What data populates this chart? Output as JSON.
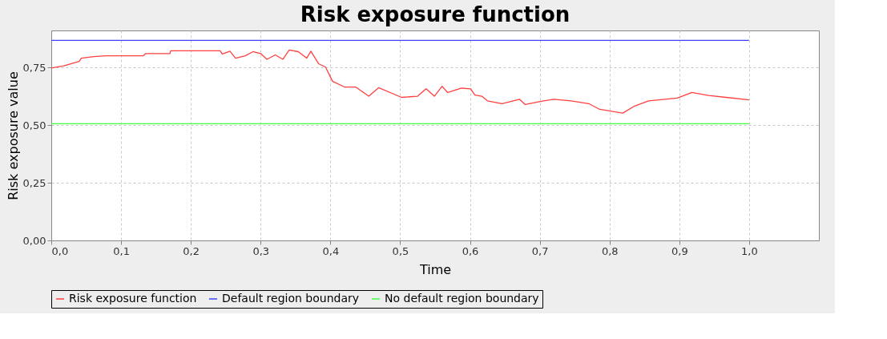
{
  "chart_data": {
    "type": "line",
    "title": "Risk exposure function",
    "xlabel": "Time",
    "ylabel": "Risk exposure value",
    "xlim": [
      0,
      1.1
    ],
    "ylim": [
      0,
      0.91
    ],
    "xticks": [
      {
        "value": 0,
        "label": "0,0"
      },
      {
        "value": 0.1,
        "label": "0,1"
      },
      {
        "value": 0.2,
        "label": "0,2"
      },
      {
        "value": 0.3,
        "label": "0,3"
      },
      {
        "value": 0.4,
        "label": "0,4"
      },
      {
        "value": 0.5,
        "label": "0,5"
      },
      {
        "value": 0.6,
        "label": "0,6"
      },
      {
        "value": 0.7,
        "label": "0,7"
      },
      {
        "value": 0.8,
        "label": "0,8"
      },
      {
        "value": 0.9,
        "label": "0,9"
      },
      {
        "value": 1.0,
        "label": "1,0"
      }
    ],
    "yticks": [
      {
        "value": 0,
        "label": "0,00"
      },
      {
        "value": 0.25,
        "label": "0,25"
      },
      {
        "value": 0.5,
        "label": "0,50"
      },
      {
        "value": 0.75,
        "label": "0,75"
      }
    ],
    "grid": true,
    "legend": "bottom",
    "line_style": "solid",
    "series": [
      {
        "name": "Risk exposure function",
        "color": "#ff4040",
        "x": [
          0,
          0.018,
          0.04,
          0.043,
          0.061,
          0.079,
          0.097,
          0.132,
          0.135,
          0.17,
          0.171,
          0.242,
          0.245,
          0.256,
          0.264,
          0.278,
          0.289,
          0.3,
          0.309,
          0.321,
          0.332,
          0.341,
          0.354,
          0.366,
          0.372,
          0.383,
          0.393,
          0.403,
          0.42,
          0.436,
          0.455,
          0.469,
          0.502,
          0.525,
          0.537,
          0.549,
          0.56,
          0.568,
          0.588,
          0.601,
          0.607,
          0.617,
          0.625,
          0.646,
          0.671,
          0.679,
          0.704,
          0.72,
          0.745,
          0.77,
          0.786,
          0.819,
          0.835,
          0.856,
          0.897,
          0.918,
          0.942,
          0.967,
          1.0
        ],
        "values": [
          0.747,
          0.757,
          0.776,
          0.79,
          0.797,
          0.8,
          0.8,
          0.8,
          0.81,
          0.81,
          0.822,
          0.822,
          0.808,
          0.82,
          0.79,
          0.8,
          0.818,
          0.81,
          0.785,
          0.804,
          0.785,
          0.825,
          0.818,
          0.79,
          0.82,
          0.766,
          0.751,
          0.69,
          0.665,
          0.665,
          0.625,
          0.662,
          0.62,
          0.625,
          0.657,
          0.625,
          0.668,
          0.641,
          0.66,
          0.657,
          0.63,
          0.625,
          0.605,
          0.593,
          0.612,
          0.589,
          0.604,
          0.612,
          0.605,
          0.593,
          0.568,
          0.552,
          0.581,
          0.605,
          0.617,
          0.641,
          0.628,
          0.62,
          0.609
        ]
      },
      {
        "name": "Default region boundary",
        "color": "#4040ff",
        "x": [
          0,
          1.0
        ],
        "values": [
          0.867,
          0.867
        ]
      },
      {
        "name": "No default region boundary",
        "color": "#40ff40",
        "x": [
          0,
          1.0
        ],
        "values": [
          0.506,
          0.506
        ]
      }
    ]
  }
}
